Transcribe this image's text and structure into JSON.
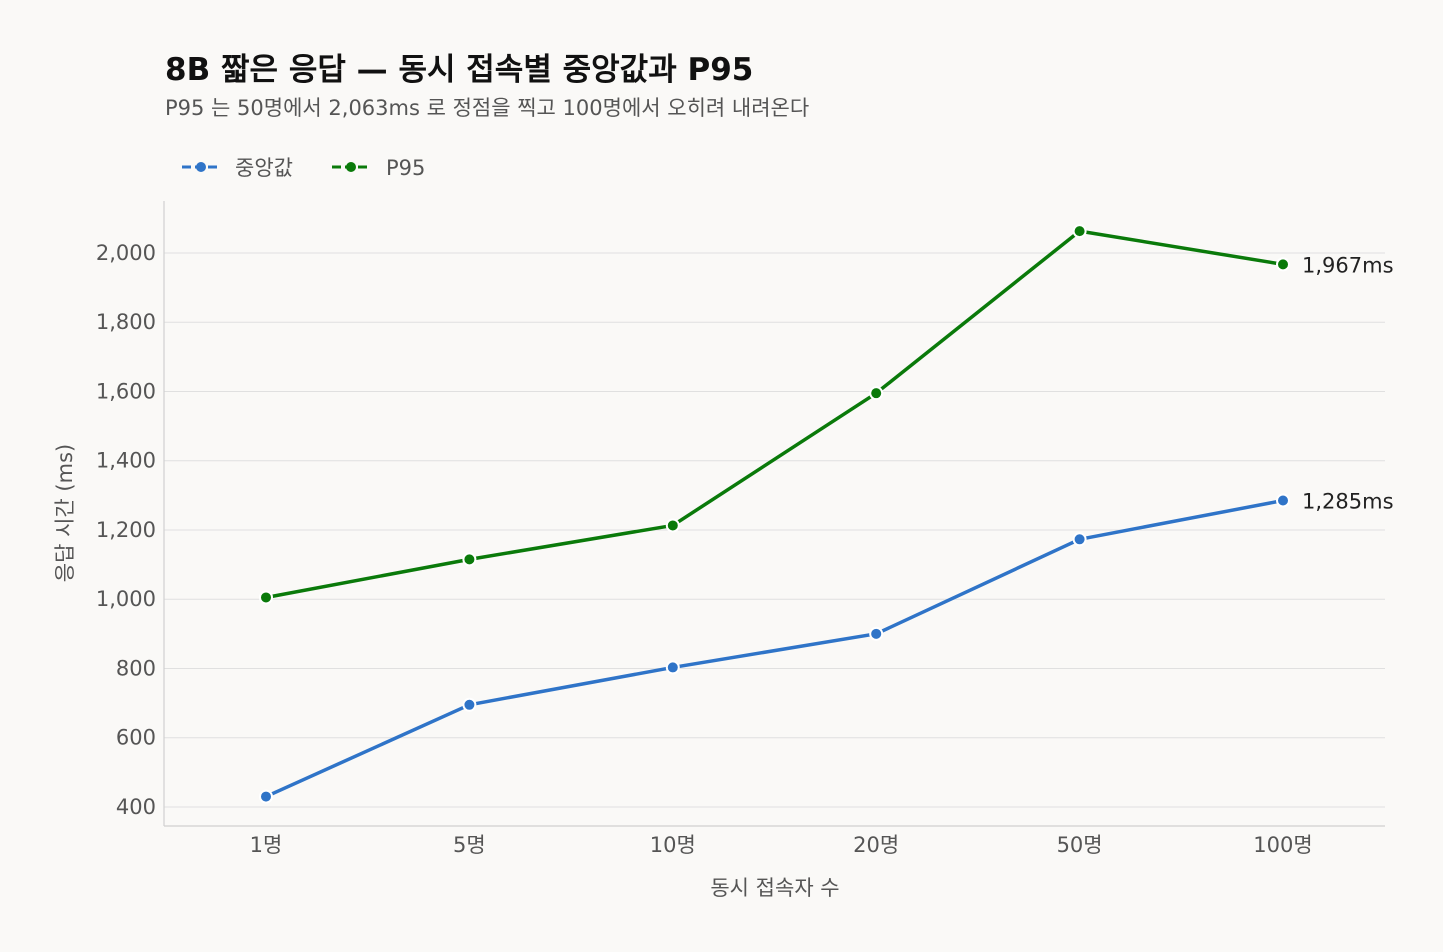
{
  "chart_data": {
    "type": "line",
    "title": "8B 짧은 응답 — 동시 접속별 중앙값과 P95",
    "subtitle": "P95 는 50명에서 2,063ms 로 정점을 찍고 100명에서 오히려 내려온다",
    "xlabel": "동시 접속자 수",
    "ylabel": "응답 시간 (ms)",
    "categories": [
      "1명",
      "5명",
      "10명",
      "20명",
      "50명",
      "100명"
    ],
    "ylim": [
      345,
      2150
    ],
    "yticks": [
      400,
      600,
      800,
      1000,
      1200,
      1400,
      1600,
      1800,
      2000
    ],
    "ytick_labels": [
      "400",
      "600",
      "800",
      "1,000",
      "1,200",
      "1,400",
      "1,600",
      "1,800",
      "2,000"
    ],
    "grid": true,
    "legend_position": "top-left",
    "series": [
      {
        "key": "median",
        "name": "중앙값",
        "color": "#2f74c8",
        "values": [
          430,
          695,
          803,
          900,
          1173,
          1285
        ],
        "end_label": "1,285ms"
      },
      {
        "key": "p95",
        "name": "P95",
        "color": "#0a7a0a",
        "values": [
          1005,
          1115,
          1213,
          1595,
          2063,
          1967
        ],
        "end_label": "1,967ms"
      }
    ]
  }
}
